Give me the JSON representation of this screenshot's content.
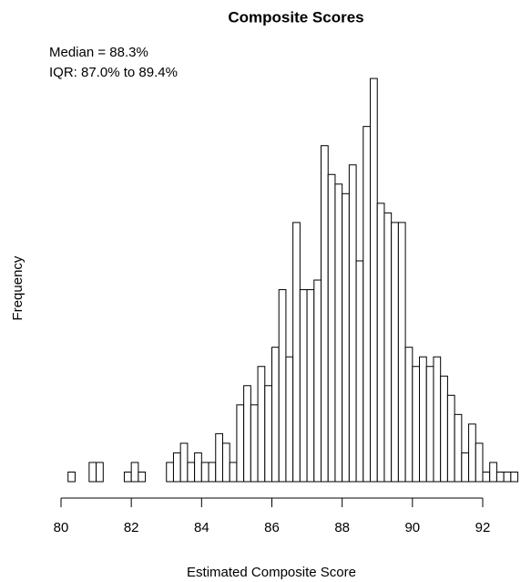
{
  "chart_data": {
    "type": "histogram",
    "title": "Composite Scores",
    "annotations": [
      "Median = 88.3%",
      "IQR: 87.0% to 89.4%"
    ],
    "x_label": "Estimated Composite Score",
    "y_label": "Frequency",
    "bins": [
      80.2,
      80.4,
      80.6,
      80.8,
      81.0,
      81.2,
      81.4,
      81.6,
      81.8,
      82.0,
      82.2,
      82.4,
      82.6,
      82.8,
      83.0,
      83.2,
      83.4,
      83.6,
      83.8,
      84.0,
      84.2,
      84.4,
      84.6,
      84.8,
      85.0,
      85.2,
      85.4,
      85.6,
      85.8,
      86.0,
      86.2,
      86.4,
      86.6,
      86.8,
      87.0,
      87.2,
      87.4,
      87.6,
      87.8,
      88.0,
      88.2,
      88.4,
      88.6,
      88.8,
      89.0,
      89.2,
      89.4,
      89.6,
      89.8,
      90.0,
      90.2,
      90.4,
      90.6,
      90.8,
      91.0,
      91.2,
      91.4,
      91.6,
      91.8,
      92.0,
      92.2,
      92.4,
      92.6,
      92.8,
      93.0
    ],
    "values": [
      1,
      0,
      0,
      2,
      2,
      0,
      0,
      0,
      1,
      2,
      1,
      0,
      0,
      0,
      2,
      3,
      4,
      2,
      3,
      2,
      2,
      5,
      4,
      2,
      8,
      10,
      8,
      12,
      10,
      14,
      20,
      13,
      27,
      20,
      20,
      21,
      35,
      32,
      31,
      30,
      33,
      23,
      37,
      42,
      29,
      28,
      27,
      27,
      14,
      12,
      13,
      12,
      13,
      11,
      9,
      7,
      3,
      6,
      4,
      1,
      2,
      1,
      1,
      1
    ],
    "color": "#ffffff",
    "xlim": [
      80,
      93.4
    ],
    "ylim": [
      0,
      44
    ],
    "xticks": [
      80,
      82,
      84,
      86,
      88,
      90,
      92
    ]
  }
}
